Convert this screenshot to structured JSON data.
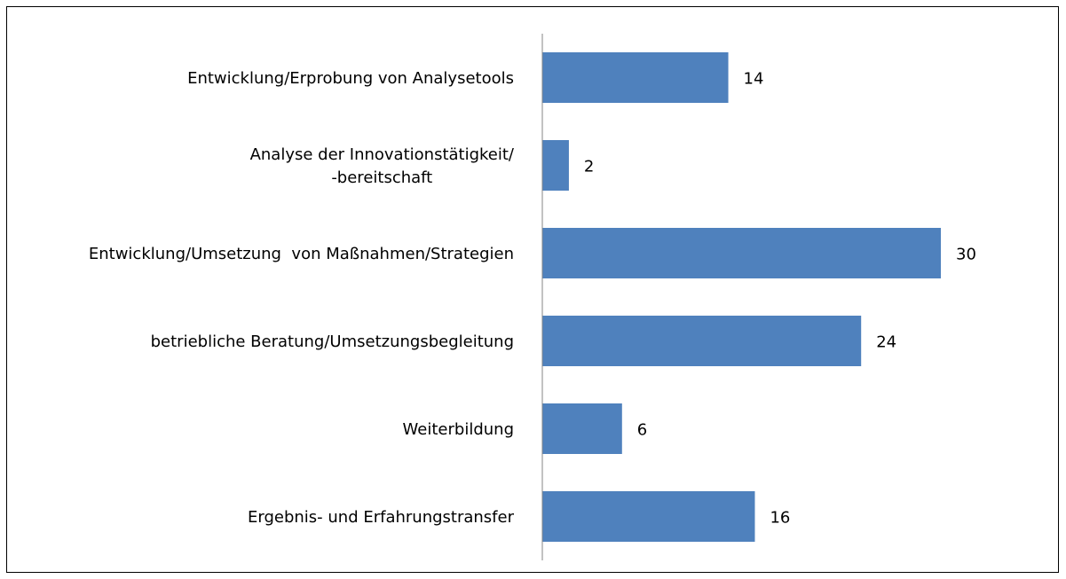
{
  "chart_data": {
    "type": "bar",
    "orientation": "horizontal",
    "categories": [
      "Entwicklung/Erprobung von Analysetools",
      "Analyse der Innovationstätigkeit/\n-bereitschaft",
      "Entwicklung/Umsetzung  von Maßnahmen/Strategien",
      "betriebliche Beratung/Umsetzungsbegleitung",
      "Weiterbildung",
      "Ergebnis- und Erfahrungstransfer"
    ],
    "values": [
      14,
      2,
      30,
      24,
      6,
      16
    ],
    "color": "#4f81bd"
  }
}
